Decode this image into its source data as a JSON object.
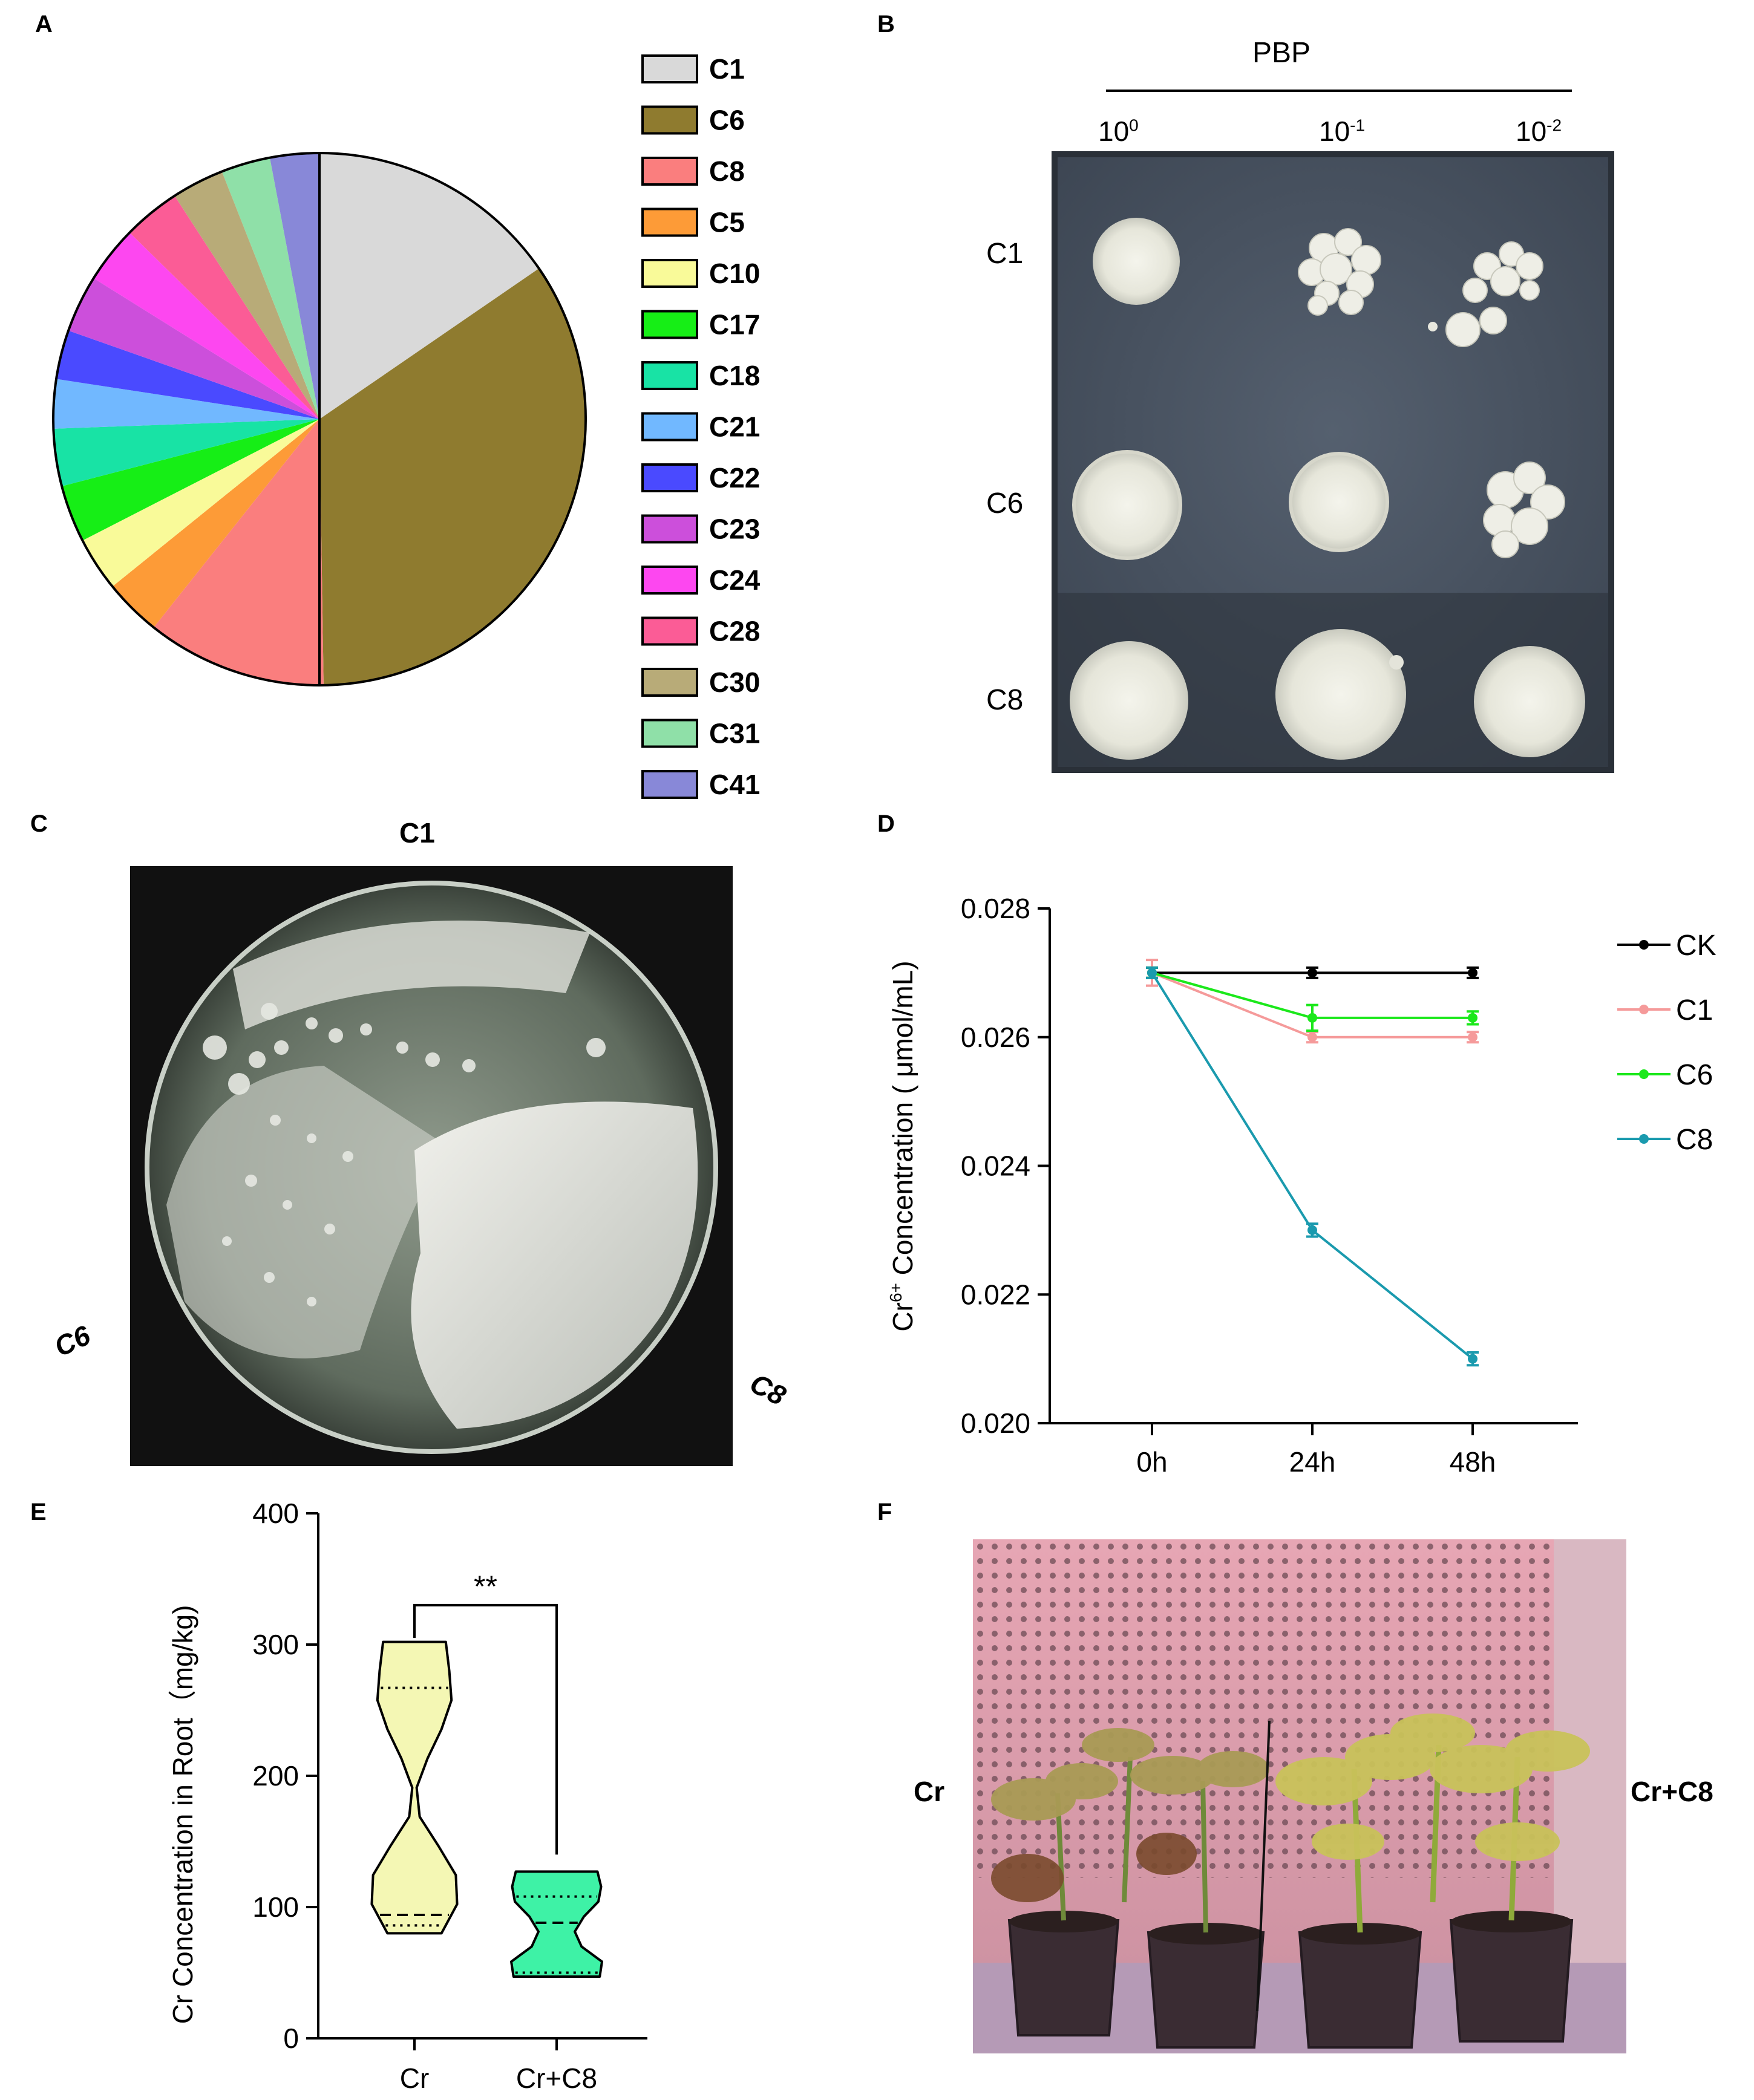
{
  "panels": {
    "A": {
      "label": "A"
    },
    "B": {
      "label": "B",
      "header": "PBP",
      "dilutions": [
        {
          "base": "10",
          "exp": "0"
        },
        {
          "base": "10",
          "exp": "-1"
        },
        {
          "base": "10",
          "exp": "-2"
        }
      ],
      "rows": [
        "C1",
        "C6",
        "C8"
      ]
    },
    "C": {
      "label": "C",
      "top": "C1",
      "left": "C6",
      "right": "C8"
    },
    "D": {
      "label": "D"
    },
    "E": {
      "label": "E"
    },
    "F": {
      "label": "F",
      "left": "Cr",
      "right": "Cr+C8"
    }
  },
  "chart_data": [
    {
      "panel": "A",
      "type": "pie",
      "slices": [
        {
          "label": "C1",
          "value": 15.5,
          "color": "#d9d9d9"
        },
        {
          "label": "C6",
          "value": 34.5,
          "color": "#8f7b2f"
        },
        {
          "label": "C8",
          "value": 11.0,
          "color": "#fa7e7e"
        },
        {
          "label": "C5",
          "value": 3.5,
          "color": "#fd9b37"
        },
        {
          "label": "C10",
          "value": 3.3,
          "color": "#f9fa99"
        },
        {
          "label": "C17",
          "value": 3.5,
          "color": "#16ee16"
        },
        {
          "label": "C18",
          "value": 3.5,
          "color": "#18e3a5"
        },
        {
          "label": "C21",
          "value": 3.0,
          "color": "#71b8ff"
        },
        {
          "label": "C22",
          "value": 3.0,
          "color": "#4a4aff"
        },
        {
          "label": "C23",
          "value": 3.5,
          "color": "#cc4fdb"
        },
        {
          "label": "C24",
          "value": 3.5,
          "color": "#fd47f0"
        },
        {
          "label": "C28",
          "value": 3.5,
          "color": "#fb5c96"
        },
        {
          "label": "C30",
          "value": 3.2,
          "color": "#b8ab78"
        },
        {
          "label": "C31",
          "value": 3.0,
          "color": "#8fe0a8"
        },
        {
          "label": "C41",
          "value": 3.0,
          "color": "#8888d8"
        }
      ]
    },
    {
      "panel": "D",
      "type": "line",
      "x": [
        "0h",
        "24h",
        "48h"
      ],
      "ylabel": {
        "pre": "Cr",
        "sup": "6+",
        "post": " Concentration ( μmol/mL)"
      },
      "ylim": [
        0.02,
        0.028
      ],
      "yticks": [
        "0.020",
        "0.022",
        "0.024",
        "0.026",
        "0.028"
      ],
      "yticks_values": [
        0.02,
        0.022,
        0.024,
        0.026,
        0.028
      ],
      "legend_position": "right",
      "series": [
        {
          "name": "CK",
          "color": "#000000",
          "values": [
            0.027,
            0.027,
            0.027
          ],
          "err": [
            8e-05,
            8e-05,
            8e-05
          ]
        },
        {
          "name": "C1",
          "color": "#f59a9a",
          "values": [
            0.027,
            0.026,
            0.026
          ],
          "err": [
            0.0002,
            8e-05,
            8e-05
          ]
        },
        {
          "name": "C6",
          "color": "#1be81b",
          "values": [
            0.027,
            0.0263,
            0.0263
          ],
          "err": [
            8e-05,
            0.0002,
            0.0001
          ]
        },
        {
          "name": "C8",
          "color": "#1a9aae",
          "values": [
            0.027,
            0.023,
            0.021
          ],
          "err": [
            8e-05,
            0.0001,
            0.0001
          ]
        }
      ]
    },
    {
      "panel": "E",
      "type": "violin",
      "categories": [
        "Cr",
        "Cr+C8"
      ],
      "ylabel": "Cr Concentration in Root（mg/kg)",
      "ylim": [
        0,
        400
      ],
      "yticks": [
        "0",
        "100",
        "200",
        "300",
        "400"
      ],
      "yticks_values": [
        0,
        100,
        200,
        300,
        400
      ],
      "significance": "**",
      "series": [
        {
          "name": "Cr",
          "color": "#f4f7b4",
          "min": 80,
          "max": 302,
          "q1": 86,
          "median": 94,
          "q3": 267
        },
        {
          "name": "Cr+C8",
          "color": "#3ef2a6",
          "min": 47,
          "max": 127,
          "q1": 50,
          "median": 88,
          "q3": 108
        }
      ]
    }
  ]
}
